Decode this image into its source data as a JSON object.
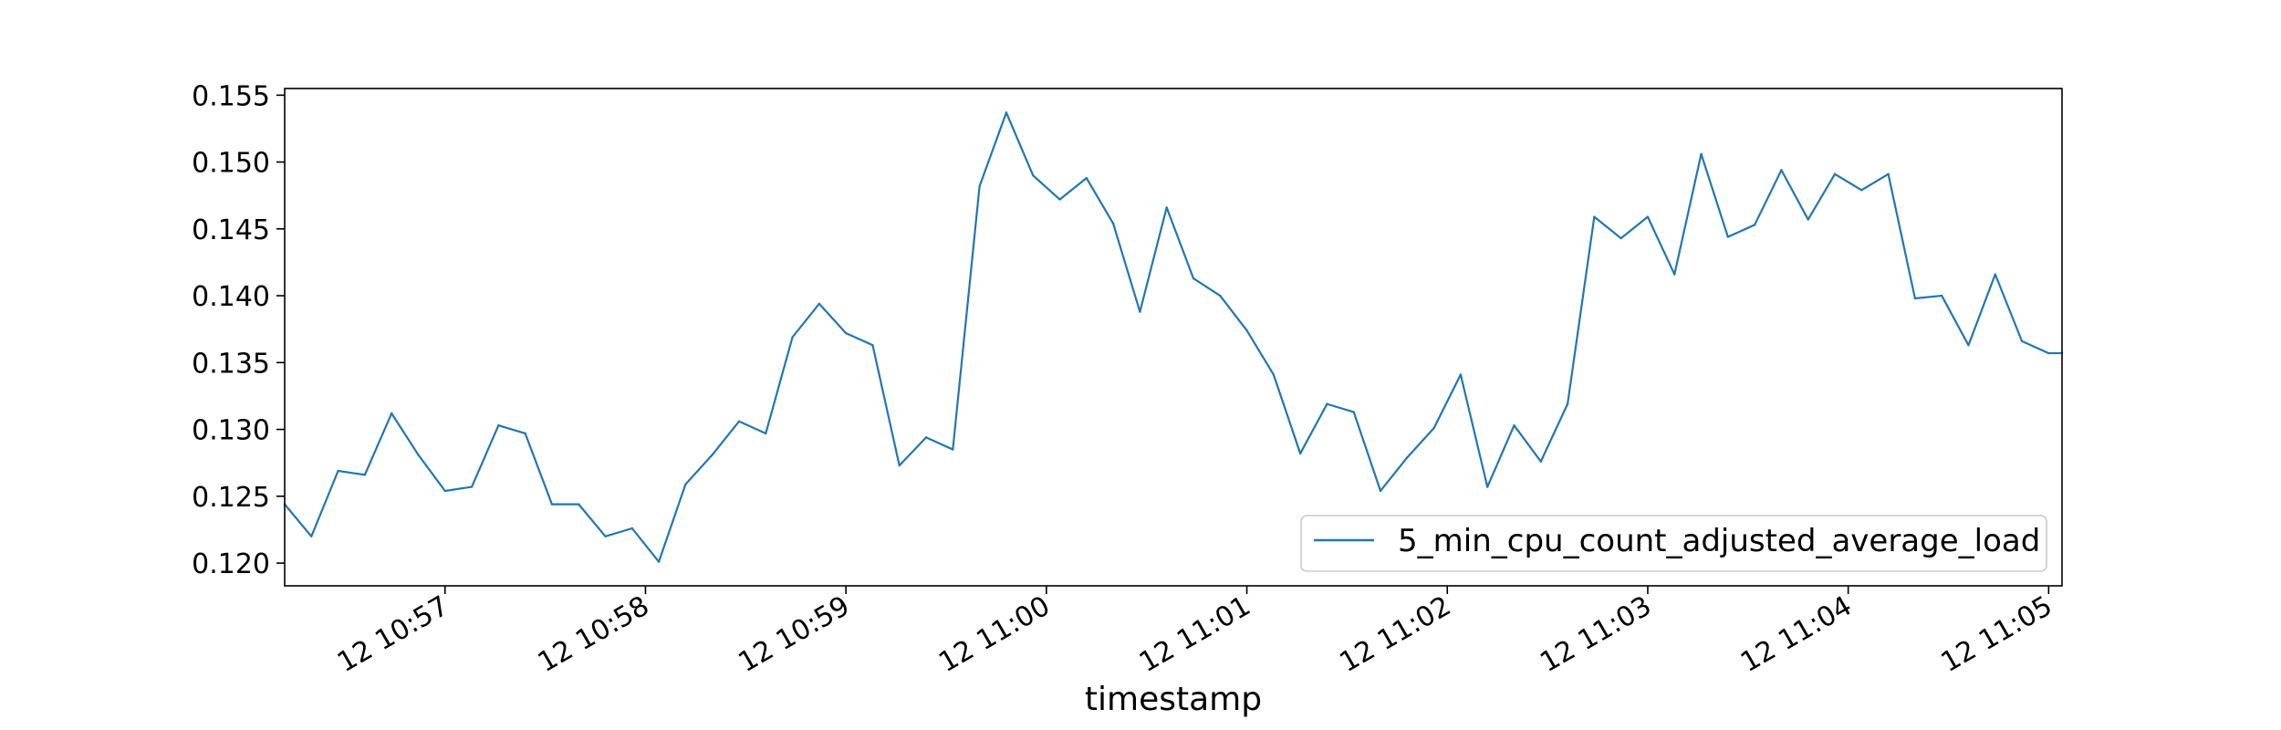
{
  "chart_data": {
    "type": "line",
    "title": "",
    "xlabel": "timestamp",
    "ylabel": "",
    "xlim": [
      "12 10:56:12",
      "12 11:05:04"
    ],
    "ylim": [
      0.1183,
      0.1555
    ],
    "x_ticks": [
      {
        "value": "12 10:57:00",
        "label": "12 10:57"
      },
      {
        "value": "12 10:58:00",
        "label": "12 10:58"
      },
      {
        "value": "12 10:59:00",
        "label": "12 10:59"
      },
      {
        "value": "12 11:00:00",
        "label": "12 11:00"
      },
      {
        "value": "12 11:01:00",
        "label": "12 11:01"
      },
      {
        "value": "12 11:02:00",
        "label": "12 11:02"
      },
      {
        "value": "12 11:03:00",
        "label": "12 11:03"
      },
      {
        "value": "12 11:04:00",
        "label": "12 11:04"
      },
      {
        "value": "12 11:05:00",
        "label": "12 11:05"
      }
    ],
    "y_ticks": [
      0.12,
      0.125,
      0.13,
      0.135,
      0.14,
      0.145,
      0.15,
      0.155
    ],
    "y_tick_labels": [
      "0.120",
      "0.125",
      "0.130",
      "0.135",
      "0.140",
      "0.145",
      "0.150",
      "0.155"
    ],
    "grid": false,
    "legend_position": "bottom-right",
    "series": [
      {
        "name": "5_min_cpu_count_adjusted_average_load",
        "color": "#1f77b4",
        "x": [
          "12 10:56:12",
          "12 10:56:20",
          "12 10:56:28",
          "12 10:56:36",
          "12 10:56:44",
          "12 10:56:52",
          "12 10:57:00",
          "12 10:57:08",
          "12 10:57:16",
          "12 10:57:24",
          "12 10:57:32",
          "12 10:57:40",
          "12 10:57:48",
          "12 10:57:56",
          "12 10:58:04",
          "12 10:58:12",
          "12 10:58:20",
          "12 10:58:28",
          "12 10:58:36",
          "12 10:58:44",
          "12 10:58:52",
          "12 10:59:00",
          "12 10:59:08",
          "12 10:59:16",
          "12 10:59:24",
          "12 10:59:32",
          "12 10:59:40",
          "12 10:59:48",
          "12 10:59:56",
          "12 11:00:04",
          "12 11:00:12",
          "12 11:00:20",
          "12 11:00:28",
          "12 11:00:36",
          "12 11:00:44",
          "12 11:00:52",
          "12 11:01:00",
          "12 11:01:08",
          "12 11:01:16",
          "12 11:01:24",
          "12 11:01:32",
          "12 11:01:40",
          "12 11:01:48",
          "12 11:01:56",
          "12 11:02:04",
          "12 11:02:12",
          "12 11:02:20",
          "12 11:02:28",
          "12 11:02:36",
          "12 11:02:44",
          "12 11:02:52",
          "12 11:03:00",
          "12 11:03:08",
          "12 11:03:16",
          "12 11:03:24",
          "12 11:03:32",
          "12 11:03:40",
          "12 11:03:48",
          "12 11:03:56",
          "12 11:04:04",
          "12 11:04:12",
          "12 11:04:20",
          "12 11:04:28",
          "12 11:04:36",
          "12 11:04:44",
          "12 11:04:52",
          "12 11:05:00",
          "12 11:05:04"
        ],
        "values": [
          0.1244,
          0.122,
          0.1269,
          0.1266,
          0.1312,
          0.1281,
          0.1254,
          0.1257,
          0.1303,
          0.1297,
          0.1244,
          0.1244,
          0.122,
          0.1226,
          0.1201,
          0.1259,
          0.1281,
          0.1306,
          0.1297,
          0.1369,
          0.1394,
          0.1372,
          0.1363,
          0.1273,
          0.1294,
          0.1285,
          0.1482,
          0.1537,
          0.149,
          0.1472,
          0.1488,
          0.1454,
          0.1388,
          0.1466,
          0.1413,
          0.14,
          0.1374,
          0.1341,
          0.1282,
          0.1319,
          0.1313,
          0.1254,
          0.1279,
          0.1301,
          0.1341,
          0.1257,
          0.1303,
          0.1276,
          0.1319,
          0.1459,
          0.1443,
          0.1459,
          0.1416,
          0.1506,
          0.1444,
          0.1453,
          0.1494,
          0.1457,
          0.1491,
          0.1479,
          0.1491,
          0.1398,
          0.14,
          0.1363,
          0.1416,
          0.1366,
          0.1357,
          0.1357
        ]
      }
    ]
  }
}
